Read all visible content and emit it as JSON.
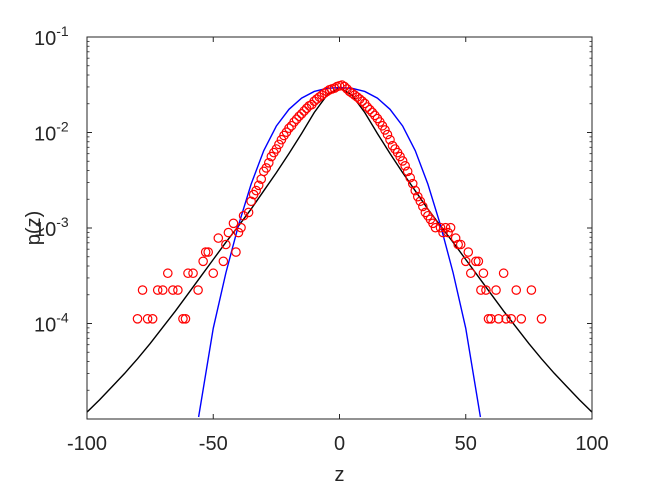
{
  "chart_data": {
    "type": "scatter",
    "title": "",
    "xlabel": "z",
    "ylabel": "p(z)",
    "xlim": [
      -100,
      100
    ],
    "ylim_log10": [
      -5,
      -1
    ],
    "y_scale": "log",
    "grid": false,
    "legend": "none",
    "x_ticks": [
      {
        "value": -100,
        "label": "-100"
      },
      {
        "value": -50,
        "label": "-50"
      },
      {
        "value": 0,
        "label": "0"
      },
      {
        "value": 50,
        "label": "50"
      },
      {
        "value": 100,
        "label": "100"
      }
    ],
    "y_ticks": [
      {
        "exponent": -1,
        "base": "10",
        "sup": "-1"
      },
      {
        "exponent": -2,
        "base": "10",
        "sup": "-2"
      },
      {
        "exponent": -3,
        "base": "10",
        "sup": "-3"
      },
      {
        "exponent": -4,
        "base": "10",
        "sup": "-4"
      }
    ],
    "series": [
      {
        "kind": "markers",
        "marker": "open-circle",
        "color": "#ff0000",
        "points": [
          [
            -80,
            0.000112
          ],
          [
            -78,
            0.000224
          ],
          [
            -76,
            0.000112
          ],
          [
            -74,
            0.000112
          ],
          [
            -72,
            0.000224
          ],
          [
            -70,
            0.000224
          ],
          [
            -68,
            0.000336
          ],
          [
            -66,
            0.000224
          ],
          [
            -64,
            0.000224
          ],
          [
            -62,
            0.000112
          ],
          [
            -61,
            0.000112
          ],
          [
            -60,
            0.000336
          ],
          [
            -58,
            0.000336
          ],
          [
            -56,
            0.000224
          ],
          [
            -54,
            0.000448
          ],
          [
            -53,
            0.00056
          ],
          [
            -52,
            0.00056
          ],
          [
            -50,
            0.000336
          ],
          [
            -48,
            0.000784
          ],
          [
            -46,
            0.000448
          ],
          [
            -45,
            0.000672
          ],
          [
            -44,
            0.000896
          ],
          [
            -42,
            0.00112
          ],
          [
            -41,
            0.00056
          ],
          [
            -40,
            0.000896
          ],
          [
            -39,
            0.001008
          ],
          [
            -38,
            0.001344
          ],
          [
            -36,
            0.001456
          ],
          [
            -35,
            0.001904
          ],
          [
            -34,
            0.00224
          ],
          [
            -33,
            0.002464
          ],
          [
            -32,
            0.0028
          ],
          [
            -31,
            0.003248
          ],
          [
            -30,
            0.00392
          ],
          [
            -29,
            0.004256
          ],
          [
            -28,
            0.004816
          ],
          [
            -27,
            0.0056
          ],
          [
            -26,
            0.00616
          ],
          [
            -25,
            0.00672
          ],
          [
            -24,
            0.007504
          ],
          [
            -23,
            0.0084
          ],
          [
            -22,
            0.009296
          ],
          [
            -21,
            0.01008
          ],
          [
            -20,
            0.011088
          ],
          [
            -19,
            0.01176
          ],
          [
            -18,
            0.01288
          ],
          [
            -17,
            0.013776
          ],
          [
            -16,
            0.014784
          ],
          [
            -15,
            0.01568
          ],
          [
            -14,
            0.0168
          ],
          [
            -13,
            0.01792
          ],
          [
            -12,
            0.01904
          ],
          [
            -11,
            0.0196
          ],
          [
            -10,
            0.02128
          ],
          [
            -9,
            0.0224
          ],
          [
            -8,
            0.02352
          ],
          [
            -7,
            0.02464
          ],
          [
            -6,
            0.02576
          ],
          [
            -5,
            0.02688
          ],
          [
            -4,
            0.028
          ],
          [
            -3,
            0.02856
          ],
          [
            -2,
            0.02912
          ],
          [
            -1,
            0.03024
          ],
          [
            0,
            0.0308
          ],
          [
            1,
            0.03136
          ],
          [
            2,
            0.03024
          ],
          [
            3,
            0.02856
          ],
          [
            4,
            0.02688
          ],
          [
            5,
            0.02576
          ],
          [
            6,
            0.02464
          ],
          [
            7,
            0.02352
          ],
          [
            8,
            0.0224
          ],
          [
            9,
            0.02128
          ],
          [
            10,
            0.02016
          ],
          [
            11,
            0.01848
          ],
          [
            12,
            0.01736
          ],
          [
            13,
            0.01624
          ],
          [
            14,
            0.01512
          ],
          [
            15,
            0.014
          ],
          [
            16,
            0.01288
          ],
          [
            17,
            0.01176
          ],
          [
            18,
            0.01064
          ],
          [
            19,
            0.00952
          ],
          [
            20,
            0.0084
          ],
          [
            21,
            0.00728
          ],
          [
            22,
            0.00672
          ],
          [
            23,
            0.00616
          ],
          [
            24,
            0.0056
          ],
          [
            25,
            0.00504
          ],
          [
            26,
            0.00448
          ],
          [
            27,
            0.00392
          ],
          [
            28,
            0.00336
          ],
          [
            29,
            0.002912
          ],
          [
            30,
            0.002464
          ],
          [
            31,
            0.002128
          ],
          [
            32,
            0.001904
          ],
          [
            33,
            0.00168
          ],
          [
            34,
            0.001456
          ],
          [
            35,
            0.001344
          ],
          [
            36,
            0.001232
          ],
          [
            37,
            0.00112
          ],
          [
            38,
            0.001008
          ],
          [
            40,
            0.001008
          ],
          [
            41,
            0.000896
          ],
          [
            42,
            0.001008
          ],
          [
            43,
            0.000896
          ],
          [
            44,
            0.001008
          ],
          [
            46,
            0.000784
          ],
          [
            47,
            0.000672
          ],
          [
            48,
            0.000672
          ],
          [
            50,
            0.000448
          ],
          [
            51,
            0.00056
          ],
          [
            52,
            0.000336
          ],
          [
            54,
            0.000448
          ],
          [
            55,
            0.000448
          ],
          [
            56,
            0.000224
          ],
          [
            57,
            0.000336
          ],
          [
            58,
            0.000224
          ],
          [
            59,
            0.000112
          ],
          [
            60,
            0.000112
          ],
          [
            62,
            0.000224
          ],
          [
            63,
            0.000112
          ],
          [
            65,
            0.000336
          ],
          [
            66,
            0.000112
          ],
          [
            68,
            0.000112
          ],
          [
            70,
            0.000224
          ],
          [
            72,
            0.000112
          ],
          [
            76,
            0.000224
          ],
          [
            80,
            0.000112
          ]
        ]
      },
      {
        "kind": "curve",
        "color": "#000000",
        "x": [
          -100,
          -95,
          -90,
          -85,
          -80,
          -75,
          -70,
          -65,
          -60,
          -55,
          -50,
          -45,
          -40,
          -35,
          -30,
          -25,
          -20,
          -15,
          -10,
          -5,
          0,
          5,
          10,
          15,
          20,
          25,
          30,
          35,
          40,
          45,
          50,
          55,
          60,
          65,
          70,
          75,
          80,
          85,
          90,
          95,
          100
        ],
        "y": [
          1.18e-05,
          1.59e-05,
          2.19e-05,
          3.02e-05,
          4.27e-05,
          6.17e-05,
          9.12e-05,
          0.000135,
          0.000204,
          0.000309,
          0.000468,
          0.000708,
          0.00105,
          0.00158,
          0.00245,
          0.0038,
          0.00603,
          0.00977,
          0.0162,
          0.0245,
          0.0295,
          0.0245,
          0.0162,
          0.00977,
          0.00603,
          0.0038,
          0.00245,
          0.00158,
          0.00105,
          0.000708,
          0.000468,
          0.000309,
          0.000204,
          0.000135,
          9.12e-05,
          6.17e-05,
          4.27e-05,
          3.02e-05,
          2.19e-05,
          1.59e-05,
          1.18e-05
        ]
      },
      {
        "kind": "curve",
        "color": "#0000ff",
        "x": [
          -55.8,
          -50,
          -45,
          -40,
          -35,
          -30,
          -25,
          -20,
          -15,
          -10,
          -5,
          0,
          5,
          10,
          15,
          20,
          25,
          30,
          35,
          40,
          45,
          50,
          55.8
        ],
        "y": [
          1.05e-05,
          8.91e-05,
          0.000339,
          0.00107,
          0.00288,
          0.00646,
          0.0117,
          0.0175,
          0.0229,
          0.0269,
          0.029,
          0.0295,
          0.029,
          0.0269,
          0.0229,
          0.0175,
          0.0117,
          0.00646,
          0.00288,
          0.00107,
          0.000339,
          8.91e-05,
          1.05e-05
        ]
      }
    ]
  }
}
